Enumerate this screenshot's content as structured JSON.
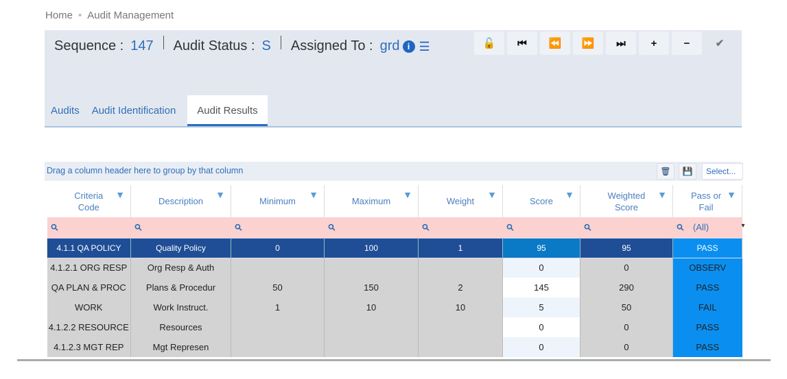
{
  "breadcrumb": {
    "home": "Home",
    "current": "Audit Management"
  },
  "header": {
    "sequence_label": "Sequence :",
    "sequence": "147",
    "status_label": "Audit Status :",
    "status": "S",
    "assigned_label": "Assigned To :",
    "assigned": "grd"
  },
  "toolbar": [
    {
      "icon": "unlock-icon",
      "glyph": "🔓"
    },
    {
      "icon": "first-icon",
      "glyph": "⏮"
    },
    {
      "icon": "prev-icon",
      "glyph": "⏪"
    },
    {
      "icon": "next-icon",
      "glyph": "⏩"
    },
    {
      "icon": "last-icon",
      "glyph": "⏭"
    },
    {
      "icon": "plus-icon",
      "glyph": "+"
    },
    {
      "icon": "minus-icon",
      "glyph": "−"
    },
    {
      "icon": "check-icon",
      "glyph": "✔"
    }
  ],
  "tabs": [
    "Audits",
    "Audit Identification",
    "Audit Results"
  ],
  "grid": {
    "group_hint": "Drag a column header here to group by that column",
    "select_placeholder": "Select...",
    "columns": [
      "Criteria Code",
      "Description",
      "Minimum",
      "Maximum",
      "Weight",
      "Score",
      "Weighted Score",
      "Pass or Fail"
    ],
    "pass_filter": "(All)",
    "rows": [
      [
        "4.1.1 QA POLICY",
        "Quality Policy",
        "0",
        "100",
        "1",
        "95",
        "95",
        "PASS"
      ],
      [
        "4.1.2.1 ORG RESP",
        "Org Resp & Auth",
        "",
        "",
        "",
        "0",
        "0",
        "OBSERV"
      ],
      [
        "QA PLAN & PROC",
        "Plans & Procedur",
        "50",
        "150",
        "2",
        "145",
        "290",
        "PASS"
      ],
      [
        "WORK",
        "Work Instruct.",
        "1",
        "10",
        "10",
        "5",
        "50",
        "FAIL"
      ],
      [
        "4.1.2.2 RESOURCE",
        "Resources",
        "",
        "",
        "",
        "0",
        "0",
        "PASS"
      ],
      [
        "4.1.2.3 MGT REP",
        "Mgt Represen",
        "",
        "",
        "",
        "0",
        "0",
        "PASS"
      ]
    ]
  },
  "colors": {
    "selected_row": "#1f4e96",
    "pass_column": "#0a8ff0",
    "filter_row": "#fbd2d0",
    "header_bg": "#e3e8f0"
  }
}
